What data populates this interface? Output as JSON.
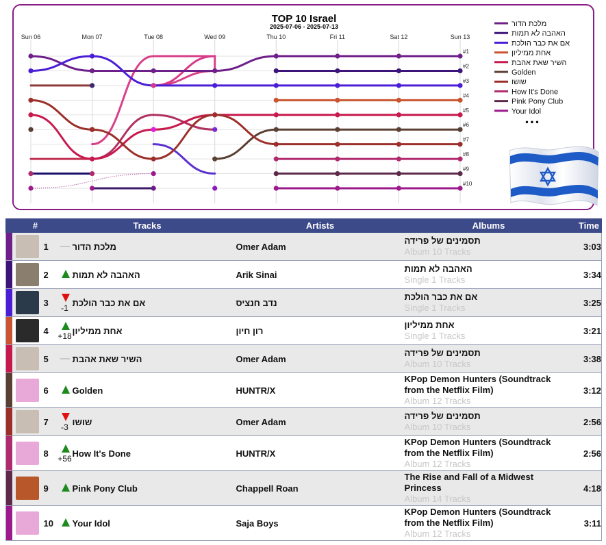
{
  "chart_data": {
    "type": "line",
    "title": "TOP 10 Israel",
    "subtitle": "2025-07-06 - 2025-07-13",
    "x": [
      "Sun 06",
      "Mon 07",
      "Tue 08",
      "Wed 09",
      "Thu 10",
      "Fri 11",
      "Sat 12",
      "Sun 13"
    ],
    "rank_labels": [
      "#1",
      "#2",
      "#3",
      "#4",
      "#5",
      "#6",
      "#7",
      "#8",
      "#9",
      "#10"
    ],
    "ylim": [
      1,
      10
    ],
    "y_inverted": true,
    "grid": true,
    "legend_position": "right",
    "legend_more": "• • •",
    "series": [
      {
        "name": "מלכת הדור",
        "color": "#6e1f8a",
        "ranks": [
          1,
          2,
          2,
          2,
          1,
          1,
          1,
          1
        ]
      },
      {
        "name": "האהבה לא תמות",
        "color": "#3d157a",
        "ranks": [
          null,
          null,
          null,
          null,
          2,
          2,
          2,
          2
        ]
      },
      {
        "name": "אם את כבר הולכת",
        "color": "#4a1ed6",
        "ranks": [
          2,
          1,
          3,
          3,
          3,
          3,
          3,
          3
        ]
      },
      {
        "name": "אחת ממיליון",
        "color": "#c95530",
        "ranks": [
          null,
          null,
          null,
          null,
          4,
          4,
          4,
          4
        ]
      },
      {
        "name": "השיר שאת אהבת",
        "color": "#c8194d",
        "ranks": [
          5,
          8,
          6,
          5,
          5,
          5,
          5,
          5
        ]
      },
      {
        "name": "Golden",
        "color": "#5a3f33",
        "ranks": [
          6,
          6,
          null,
          8,
          6,
          6,
          6,
          6
        ]
      },
      {
        "name": "שושו",
        "color": "#9c2f2a",
        "ranks": [
          4,
          6,
          8,
          5,
          7,
          7,
          7,
          7
        ]
      },
      {
        "name": "How It's Done",
        "color": "#b02a6e",
        "ranks": [
          9,
          9,
          null,
          null,
          8,
          8,
          8,
          8
        ]
      },
      {
        "name": "Pink Pony Club",
        "color": "#5e2a4a",
        "ranks": [
          null,
          null,
          null,
          null,
          9,
          9,
          9,
          9
        ]
      },
      {
        "name": "Your Idol",
        "color": "#9c1a8c",
        "ranks": [
          10,
          10,
          9,
          null,
          10,
          10,
          10,
          10
        ]
      }
    ],
    "segments": [
      {
        "series": 0,
        "from": 0,
        "to": 7
      },
      {
        "series": 1,
        "from": 4,
        "to": 7
      },
      {
        "series": 2,
        "from": 0,
        "to": 3
      },
      {
        "series": 2,
        "from": 3,
        "to": 7
      },
      {
        "series": 3,
        "from": 4,
        "to": 7
      },
      {
        "series": 4,
        "from": 0,
        "to": 7
      },
      {
        "series": 5,
        "from": 3,
        "to": 7
      },
      {
        "series": 6,
        "from": 0,
        "to": 7
      },
      {
        "series": 7,
        "from": 4,
        "to": 7
      },
      {
        "series": 8,
        "from": 4,
        "to": 7
      },
      {
        "series": 9,
        "from": 4,
        "to": 7
      }
    ],
    "extra_lines": [
      {
        "color": "#8f3a3a",
        "pts": [
          [
            0,
            3
          ],
          [
            1,
            3
          ]
        ]
      },
      {
        "color": "#1a0f6a",
        "pts": [
          [
            0,
            9
          ],
          [
            1,
            9
          ]
        ]
      },
      {
        "color": "#3b1a6a",
        "pts": [
          [
            1,
            10
          ],
          [
            2,
            10
          ]
        ]
      },
      {
        "color": "#d8408a",
        "pts": [
          [
            1,
            7
          ],
          [
            2,
            1
          ],
          [
            3,
            1
          ],
          [
            3,
            2
          ],
          [
            2,
            3
          ]
        ]
      },
      {
        "color": "#d83a8a",
        "pts": [
          [
            3,
            1
          ],
          [
            2,
            3
          ]
        ]
      },
      {
        "color": "#c03050",
        "pts": [
          [
            0,
            8
          ],
          [
            1,
            8
          ]
        ]
      },
      {
        "color": "#5c32d0",
        "pts": [
          [
            2,
            7
          ],
          [
            3,
            9
          ]
        ]
      },
      {
        "color": "#b03060",
        "pts": [
          [
            1,
            8
          ],
          [
            2,
            5
          ],
          [
            3,
            6
          ]
        ]
      }
    ],
    "dotted_lines": [
      {
        "color": "#9c1a8c",
        "pts": [
          [
            0,
            10
          ],
          [
            2,
            9
          ]
        ]
      }
    ]
  },
  "table": {
    "headers": {
      "rank": "#",
      "tracks": "Tracks",
      "artists": "Artists",
      "albums": "Albums",
      "time": "Time"
    },
    "rows": [
      {
        "rank": "1",
        "trend": "same",
        "delta": "",
        "track": "מלכת הדור",
        "artist": "Omer Adam",
        "album": "תסמינים של פרידה",
        "album_sub": "Album 10 Tracks",
        "time": "3:03",
        "color": "#6e1f8a",
        "cover": "#c8beb4"
      },
      {
        "rank": "2",
        "trend": "up",
        "delta": "",
        "track": "האהבה לא תמות",
        "artist": "Arik Sinai",
        "album": "האהבה לא תמות",
        "album_sub": "Single 1 Tracks",
        "time": "3:34",
        "color": "#3d157a",
        "cover": "#8a7f6e"
      },
      {
        "rank": "3",
        "trend": "down",
        "delta": "-1",
        "track": "אם את כבר הולכת",
        "artist": "נדב חנציס",
        "album": "אם את כבר הולכת",
        "album_sub": "Single 1 Tracks",
        "time": "3:25",
        "color": "#4a1ed6",
        "cover": "#2a3a4a"
      },
      {
        "rank": "4",
        "trend": "up",
        "delta": "+18",
        "track": "אחת ממיליון",
        "artist": "רון חיון",
        "album": "אחת ממיליון",
        "album_sub": "Single 1 Tracks",
        "time": "3:21",
        "color": "#c95530",
        "cover": "#2a2a2a"
      },
      {
        "rank": "5",
        "trend": "same",
        "delta": "",
        "track": "השיר שאת אהבת",
        "artist": "Omer Adam",
        "album": "תסמינים של פרידה",
        "album_sub": "Album 10 Tracks",
        "time": "3:38",
        "color": "#c8194d",
        "cover": "#c8beb4"
      },
      {
        "rank": "6",
        "trend": "up",
        "delta": "",
        "track": "Golden",
        "artist": "HUNTR/X",
        "album": "KPop Demon Hunters (Soundtrack from the Netflix Film)",
        "album_sub": "Album 12 Tracks",
        "time": "3:12",
        "color": "#5a3f33",
        "cover": "#e8a8d8"
      },
      {
        "rank": "7",
        "trend": "down",
        "delta": "-3",
        "track": "שושו",
        "artist": "Omer Adam",
        "album": "תסמינים של פרידה",
        "album_sub": "Album 10 Tracks",
        "time": "2:56",
        "color": "#9c2f2a",
        "cover": "#c8beb4"
      },
      {
        "rank": "8",
        "trend": "up",
        "delta": "+56",
        "track": "How It's Done",
        "artist": "HUNTR/X",
        "album": "KPop Demon Hunters (Soundtrack from the Netflix Film)",
        "album_sub": "Album 12 Tracks",
        "time": "2:56",
        "color": "#b02a6e",
        "cover": "#e8a8d8"
      },
      {
        "rank": "9",
        "trend": "up",
        "delta": "",
        "track": "Pink Pony Club",
        "artist": "Chappell Roan",
        "album": "The Rise and Fall of a Midwest Princess",
        "album_sub": "Album 14 Tracks",
        "time": "4:18",
        "color": "#5e2a4a",
        "cover": "#b8582a"
      },
      {
        "rank": "10",
        "trend": "up",
        "delta": "",
        "track": "Your Idol",
        "artist": "Saja Boys",
        "album": "KPop Demon Hunters (Soundtrack from the Netflix Film)",
        "album_sub": "Album 12 Tracks",
        "time": "3:11",
        "color": "#9c1a8c",
        "cover": "#e8a8d8"
      }
    ]
  }
}
